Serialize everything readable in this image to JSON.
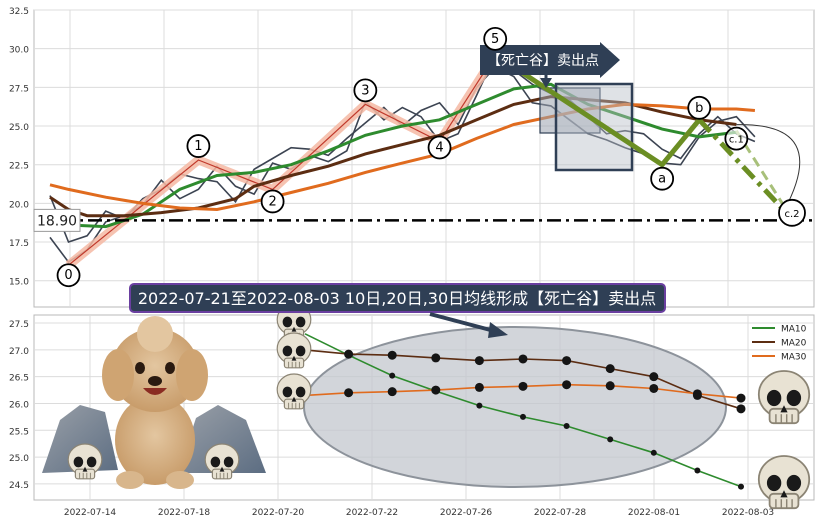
{
  "chart_data": [
    {
      "type": "line",
      "panel": "price-waves",
      "ylim": [
        13.3,
        32.5
      ],
      "y_ticks": [
        15.0,
        17.5,
        20.0,
        22.5,
        25.0,
        27.5,
        30.0,
        32.5
      ],
      "grid": true,
      "reference_level": {
        "label": "18.90",
        "value": 18.9
      },
      "price_lines": [
        [
          [
            0,
            17.8
          ],
          [
            1,
            16.2
          ],
          [
            2,
            17.0
          ],
          [
            3,
            18.8
          ],
          [
            4,
            19.2
          ],
          [
            5,
            19.9
          ],
          [
            6,
            21.5
          ],
          [
            7,
            20.3
          ],
          [
            8,
            20.9
          ],
          [
            9,
            22.4
          ],
          [
            10,
            21.1
          ],
          [
            11,
            20.6
          ],
          [
            12,
            22.6
          ],
          [
            13,
            22.2
          ],
          [
            14,
            23.1
          ],
          [
            15,
            22.7
          ],
          [
            16,
            23.4
          ],
          [
            17,
            26.6
          ],
          [
            18,
            25.4
          ],
          [
            19,
            26.2
          ],
          [
            20,
            25.6
          ],
          [
            21,
            24.0
          ],
          [
            22,
            24.5
          ],
          [
            23,
            27.0
          ],
          [
            24,
            29.6
          ],
          [
            25,
            28.6
          ],
          [
            26,
            27.7
          ],
          [
            27,
            27.1
          ],
          [
            28,
            26.7
          ],
          [
            29,
            25.6
          ],
          [
            30,
            24.5
          ],
          [
            31,
            24.7
          ],
          [
            32,
            24.5
          ],
          [
            33,
            23.5
          ],
          [
            34,
            22.9
          ],
          [
            35,
            24.5
          ],
          [
            36,
            25.6
          ],
          [
            37,
            24.5
          ],
          [
            38,
            24.0
          ]
        ],
        [
          [
            0,
            20.5
          ],
          [
            1,
            17.5
          ],
          [
            2,
            17.9
          ],
          [
            3,
            19.5
          ],
          [
            4,
            19.0
          ],
          [
            5,
            20.3
          ],
          [
            6,
            20.9
          ],
          [
            7,
            21.9
          ],
          [
            8,
            21.6
          ],
          [
            9,
            21.4
          ],
          [
            10,
            20.1
          ],
          [
            11,
            22.2
          ],
          [
            12,
            22.9
          ],
          [
            13,
            23.6
          ],
          [
            14,
            23.5
          ],
          [
            15,
            23.1
          ],
          [
            16,
            24.2
          ],
          [
            17,
            25.2
          ],
          [
            18,
            26.2
          ],
          [
            19,
            25.0
          ],
          [
            20,
            26.0
          ],
          [
            21,
            26.5
          ],
          [
            22,
            25.1
          ],
          [
            23,
            27.5
          ],
          [
            24,
            28.8
          ],
          [
            25,
            28.2
          ],
          [
            26,
            26.5
          ],
          [
            27,
            26.3
          ],
          [
            28,
            25.4
          ],
          [
            29,
            24.5
          ],
          [
            30,
            24.1
          ],
          [
            31,
            23.6
          ],
          [
            32,
            23.2
          ],
          [
            33,
            22.6
          ],
          [
            34,
            22.5
          ],
          [
            35,
            24.3
          ],
          [
            36,
            25.3
          ],
          [
            37,
            25.6
          ],
          [
            38,
            24.3
          ]
        ]
      ],
      "series": [
        {
          "name": "MA10",
          "color": "#2e8b2e",
          "points": [
            [
              1,
              18.6
            ],
            [
              3,
              18.5
            ],
            [
              5,
              19.3
            ],
            [
              7,
              20.9
            ],
            [
              9,
              21.8
            ],
            [
              11,
              22.0
            ],
            [
              13,
              22.5
            ],
            [
              15,
              23.4
            ],
            [
              17,
              24.4
            ],
            [
              19,
              25.0
            ],
            [
              21,
              25.4
            ],
            [
              23,
              26.4
            ],
            [
              25,
              27.4
            ],
            [
              27,
              27.7
            ],
            [
              29,
              26.4
            ],
            [
              31,
              25.6
            ],
            [
              33,
              24.8
            ],
            [
              35,
              24.3
            ],
            [
              37,
              24.6
            ]
          ]
        },
        {
          "name": "MA20",
          "color": "#5c2d12",
          "points": [
            [
              0,
              20.4
            ],
            [
              1,
              19.6
            ],
            [
              2,
              19.2
            ],
            [
              4,
              19.2
            ],
            [
              6,
              19.4
            ],
            [
              8,
              19.7
            ],
            [
              10,
              20.3
            ],
            [
              11,
              21.1
            ],
            [
              13,
              21.8
            ],
            [
              15,
              22.4
            ],
            [
              17,
              23.2
            ],
            [
              19,
              23.8
            ],
            [
              21,
              24.4
            ],
            [
              23,
              25.4
            ],
            [
              25,
              26.4
            ],
            [
              27,
              26.9
            ],
            [
              29,
              26.7
            ],
            [
              31,
              26.5
            ],
            [
              33,
              25.9
            ],
            [
              35,
              25.4
            ],
            [
              37,
              25.1
            ]
          ]
        },
        {
          "name": "MA30",
          "color": "#e06b1e",
          "points": [
            [
              0,
              21.2
            ],
            [
              1,
              20.9
            ],
            [
              3,
              20.4
            ],
            [
              5,
              20.0
            ],
            [
              7,
              19.7
            ],
            [
              9,
              19.6
            ],
            [
              11,
              20.1
            ],
            [
              13,
              20.7
            ],
            [
              15,
              21.3
            ],
            [
              17,
              22.0
            ],
            [
              19,
              22.6
            ],
            [
              21,
              23.2
            ],
            [
              23,
              24.2
            ],
            [
              25,
              25.1
            ],
            [
              27,
              25.6
            ],
            [
              29,
              26.1
            ],
            [
              31,
              26.4
            ],
            [
              33,
              26.3
            ],
            [
              35,
              26.1
            ],
            [
              37,
              26.1
            ],
            [
              38,
              26.0
            ]
          ]
        }
      ],
      "wave_points": [
        {
          "label": "0",
          "x": 1,
          "y": 16.0
        },
        {
          "label": "1",
          "x": 8,
          "y": 22.8
        },
        {
          "label": "2",
          "x": 12,
          "y": 20.9
        },
        {
          "label": "3",
          "x": 17,
          "y": 26.4
        },
        {
          "label": "4",
          "x": 21,
          "y": 24.0
        },
        {
          "label": "5",
          "x": 24,
          "y": 29.6
        },
        {
          "label": "a",
          "x": 33,
          "y": 22.5
        },
        {
          "label": "b",
          "x": 35,
          "y": 25.4
        },
        {
          "label": "c1",
          "x": 37,
          "y": 24.7
        },
        {
          "label": "c2",
          "x": 40,
          "y": 19.0
        }
      ],
      "callout": "【死亡谷】卖出点",
      "label_badges": {
        "a": "a",
        "b": "b",
        "c1": "c1",
        "c2": "c2"
      }
    },
    {
      "type": "line",
      "panel": "moving-averages",
      "title": "2022-07-21至2022-08-03 10日,20日,30日均线形成【死亡谷】卖出点",
      "ylim": [
        24.2,
        27.65
      ],
      "y_ticks": [
        24.5,
        25.0,
        25.5,
        26.0,
        26.5,
        27.0,
        27.5
      ],
      "grid": true,
      "legend": "top-right",
      "x_ticks": [
        "2022-07-14",
        "2022-07-18",
        "2022-07-20",
        "2022-07-22",
        "2022-07-26",
        "2022-07-28",
        "2022-08-01",
        "2022-08-03"
      ],
      "series": [
        {
          "name": "MA10",
          "color": "#2e8b2e",
          "values": [
            [
              0,
              27.3
            ],
            [
              2,
              26.9
            ],
            [
              4,
              26.52
            ],
            [
              6,
              26.23
            ],
            [
              8,
              25.96
            ],
            [
              10,
              25.75
            ],
            [
              12,
              25.58
            ],
            [
              14,
              25.33
            ],
            [
              16,
              25.08
            ],
            [
              18,
              24.75
            ],
            [
              20,
              24.45
            ]
          ]
        },
        {
          "name": "MA20",
          "color": "#5c2d12",
          "values": [
            [
              0,
              27.0
            ],
            [
              2,
              26.92
            ],
            [
              4,
              26.9
            ],
            [
              6,
              26.85
            ],
            [
              8,
              26.8
            ],
            [
              10,
              26.83
            ],
            [
              12,
              26.8
            ],
            [
              14,
              26.65
            ],
            [
              16,
              26.5
            ],
            [
              18,
              26.15
            ],
            [
              20,
              25.9
            ]
          ]
        },
        {
          "name": "MA30",
          "color": "#e06b1e",
          "values": [
            [
              0,
              26.15
            ],
            [
              2,
              26.2
            ],
            [
              4,
              26.22
            ],
            [
              6,
              26.25
            ],
            [
              8,
              26.3
            ],
            [
              10,
              26.32
            ],
            [
              12,
              26.35
            ],
            [
              14,
              26.33
            ],
            [
              16,
              26.28
            ],
            [
              18,
              26.18
            ],
            [
              20,
              26.1
            ]
          ]
        }
      ]
    }
  ]
}
